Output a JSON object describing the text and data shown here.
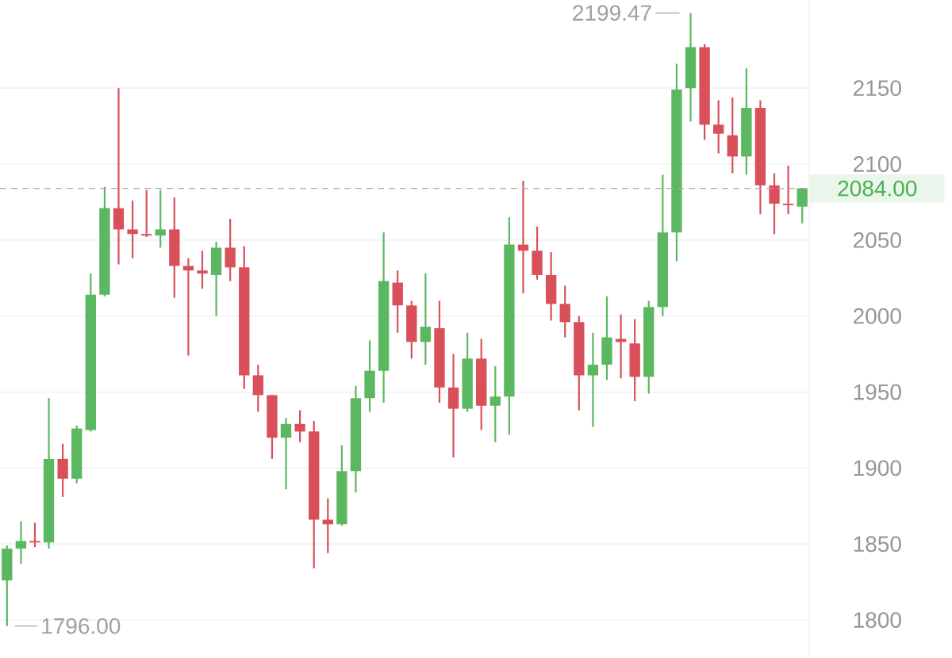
{
  "chart_data": {
    "type": "candlestick",
    "categories": [
      null,
      null,
      null,
      null,
      null,
      null,
      null,
      null,
      null,
      null,
      null,
      null,
      null,
      null,
      null,
      null,
      null,
      null,
      null,
      null,
      null,
      null,
      null,
      null,
      null,
      null,
      null,
      null,
      null,
      null,
      null,
      null,
      null,
      null,
      null,
      null,
      null,
      null,
      null,
      null,
      null,
      null,
      null,
      null,
      null,
      null,
      null,
      null,
      null,
      null,
      null,
      null,
      null,
      null,
      null,
      null,
      null,
      null
    ],
    "ohlc": [
      [
        1826,
        1849,
        1796,
        1847
      ],
      [
        1847,
        1865,
        1837,
        1852
      ],
      [
        1852,
        1864,
        1848,
        1851
      ],
      [
        1851,
        1946,
        1847,
        1906
      ],
      [
        1906,
        1916,
        1881,
        1893
      ],
      [
        1893,
        1928,
        1890,
        1926
      ],
      [
        1925,
        2028,
        1924,
        2014
      ],
      [
        2014,
        2085,
        2013,
        2071
      ],
      [
        2071,
        2150,
        2034,
        2057
      ],
      [
        2057,
        2076,
        2038,
        2054
      ],
      [
        2054,
        2083,
        2052,
        2053
      ],
      [
        2053,
        2083,
        2045,
        2057
      ],
      [
        2057,
        2078,
        2012,
        2033
      ],
      [
        2033,
        2038,
        1974,
        2030
      ],
      [
        2030,
        2043,
        2018,
        2028
      ],
      [
        2027,
        2049,
        2000,
        2045
      ],
      [
        2045,
        2064,
        2023,
        2032
      ],
      [
        2032,
        2046,
        1952,
        1961
      ],
      [
        1961,
        1968,
        1937,
        1948
      ],
      [
        1948,
        1948,
        1906,
        1920
      ],
      [
        1920,
        1933,
        1886,
        1929
      ],
      [
        1929,
        1938,
        1917,
        1924
      ],
      [
        1924,
        1931,
        1834,
        1866
      ],
      [
        1866,
        1880,
        1844,
        1863
      ],
      [
        1863,
        1915,
        1862,
        1898
      ],
      [
        1898,
        1954,
        1884,
        1946
      ],
      [
        1946,
        1984,
        1937,
        1964
      ],
      [
        1964,
        2055,
        1943,
        2023
      ],
      [
        2022,
        2030,
        1989,
        2007
      ],
      [
        2007,
        2010,
        1972,
        1983
      ],
      [
        1983,
        2028,
        1968,
        1993
      ],
      [
        1992,
        2010,
        1943,
        1953
      ],
      [
        1953,
        1975,
        1907,
        1939
      ],
      [
        1939,
        1989,
        1937,
        1972
      ],
      [
        1972,
        1985,
        1925,
        1941
      ],
      [
        1941,
        1967,
        1917,
        1947
      ],
      [
        1947,
        2065,
        1922,
        2047
      ],
      [
        2047,
        2089,
        2015,
        2043
      ],
      [
        2043,
        2059,
        2024,
        2027
      ],
      [
        2027,
        2042,
        1997,
        2008
      ],
      [
        2008,
        2020,
        1986,
        1996
      ],
      [
        1996,
        2000,
        1938,
        1961
      ],
      [
        1961,
        1989,
        1927,
        1968
      ],
      [
        1968,
        2013,
        1958,
        1986
      ],
      [
        1985,
        2001,
        1959,
        1983
      ],
      [
        1982,
        1998,
        1944,
        1960
      ],
      [
        1960,
        2010,
        1949,
        2006
      ],
      [
        2006,
        2093,
        2000,
        2055
      ],
      [
        2055,
        2166,
        2036,
        2149
      ],
      [
        2150,
        2199.47,
        2128,
        2177
      ],
      [
        2177,
        2179,
        2116,
        2126
      ],
      [
        2126,
        2142,
        2107,
        2120
      ],
      [
        2119,
        2144,
        2094,
        2105
      ],
      [
        2105,
        2163,
        2093,
        2137
      ],
      [
        2137,
        2142,
        2067,
        2086
      ],
      [
        2086,
        2094,
        2054,
        2074
      ],
      [
        2074,
        2099,
        2067,
        2073
      ],
      [
        2072,
        2084,
        2061,
        2084
      ]
    ],
    "colors": [
      "#5cb860",
      "#5cb860",
      "#d9505a",
      "#5cb860",
      "#d9505a",
      "#5cb860",
      "#5cb860",
      "#5cb860",
      "#d9505a",
      "#d9505a",
      "#d9505a",
      "#5cb860",
      "#d9505a",
      "#d9505a",
      "#d9505a",
      "#5cb860",
      "#d9505a",
      "#d9505a",
      "#d9505a",
      "#d9505a",
      "#5cb860",
      "#d9505a",
      "#d9505a",
      "#d9505a",
      "#5cb860",
      "#5cb860",
      "#5cb860",
      "#5cb860",
      "#d9505a",
      "#d9505a",
      "#5cb860",
      "#d9505a",
      "#d9505a",
      "#5cb860",
      "#d9505a",
      "#5cb860",
      "#5cb860",
      "#d9505a",
      "#d9505a",
      "#d9505a",
      "#d9505a",
      "#d9505a",
      "#5cb860",
      "#5cb860",
      "#d9505a",
      "#d9505a",
      "#5cb860",
      "#5cb860",
      "#5cb860",
      "#5cb860",
      "#d9505a",
      "#d9505a",
      "#d9505a",
      "#5cb860",
      "#d9505a",
      "#d9505a",
      "#d9505a",
      "#5cb860"
    ],
    "ylim": [
      1775,
      2208
    ],
    "yticks": [
      1800,
      1850,
      1900,
      1950,
      2000,
      2050,
      2100,
      2150
    ],
    "grid": "y",
    "tick_labels": "y",
    "ref_lines": [
      {
        "axis": "y",
        "value": 2084,
        "label": "2084.00",
        "color": "#aaaaaa",
        "line_style": "dashed"
      }
    ],
    "annotations": [
      "2199.47",
      "1796.00"
    ]
  }
}
